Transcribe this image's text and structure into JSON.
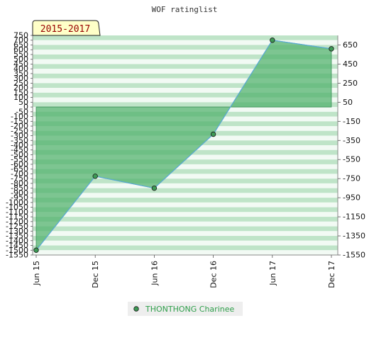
{
  "chart_data": {
    "type": "area",
    "title": "WOF ratinglist",
    "badge": "2015-2017",
    "categories": [
      "Jun 15",
      "Dec 15",
      "Jun 16",
      "Dec 16",
      "Jun 17",
      "Dec 17"
    ],
    "series": [
      {
        "name": "THONTHONG Charinee",
        "values": [
          -1500,
          -725,
          -850,
          -285,
          700,
          610
        ]
      }
    ],
    "left_axis": {
      "ylim": [
        -1550,
        750
      ],
      "ticks": [
        750,
        700,
        650,
        600,
        550,
        500,
        450,
        400,
        350,
        300,
        250,
        200,
        150,
        100,
        50,
        0,
        -50,
        -100,
        -150,
        -200,
        -250,
        -300,
        -350,
        -400,
        -450,
        -500,
        -550,
        -600,
        -650,
        -700,
        -750,
        -800,
        -850,
        -900,
        -950,
        -1000,
        -1050,
        -1100,
        -1150,
        -1200,
        -1250,
        -1300,
        -1350,
        -1400,
        -1450,
        -1500,
        -1550
      ],
      "tick_labels": [
        "750",
        "700",
        "650",
        "600",
        "550",
        "500",
        "450",
        "400",
        "350",
        "300",
        "250",
        "200",
        "150",
        "100",
        "50",
        "0",
        "-50",
        "-100",
        "-150",
        "-200",
        "-250",
        "-300",
        "-350",
        "-400",
        "-450",
        "-500",
        "-550",
        "-600",
        "-650",
        "-700",
        "-750",
        "-800",
        "-850",
        "-900",
        "-950",
        "-1000",
        "-1050",
        "-1100",
        "-1150",
        "-1200",
        "-1250",
        "-1300",
        "-1350",
        "-1400",
        "-1450",
        "-1500",
        "-1550"
      ]
    },
    "right_axis": {
      "ylim": [
        -1550,
        750
      ],
      "ticks": [
        650,
        450,
        250,
        50,
        -150,
        -350,
        -550,
        -750,
        -950,
        -1150,
        -1350,
        -1550
      ],
      "tick_labels": [
        "650",
        "450",
        "250",
        "50",
        "-150",
        "-350",
        "-550",
        "-750",
        "-950",
        "-1150",
        "-1350",
        "-1550"
      ]
    },
    "baseline": 0,
    "grid": true,
    "legend_position": "bottom-center",
    "colors": {
      "fill": "#4fb06b",
      "line": "#5aa9d6",
      "marker": "#3d9a55",
      "stripe_dark": "#bfe4c8",
      "stripe_light": "#f2faf4",
      "badge_bg": "#ffffc8",
      "badge_text": "#990000",
      "legend_text": "#2e9e4a"
    }
  }
}
